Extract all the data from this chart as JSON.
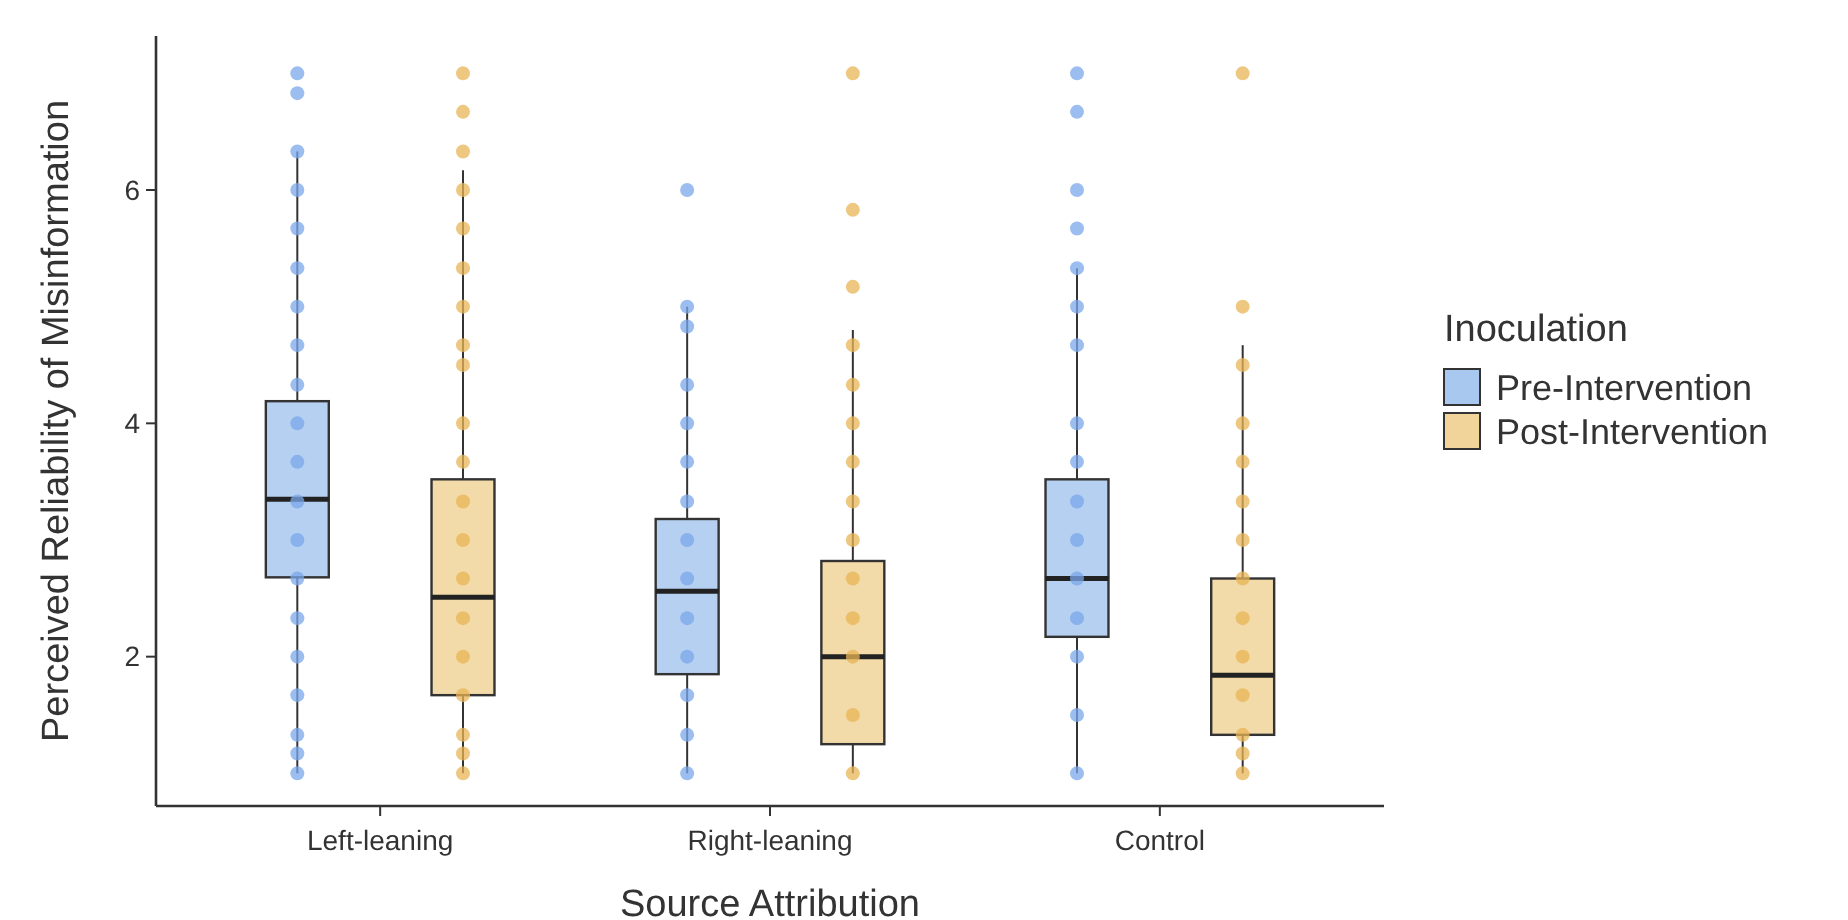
{
  "chart_data": {
    "type": "box",
    "xlabel": "Source Attribution",
    "ylabel": "Perceived Reliability of Misinformation",
    "legend_title": "Inoculation",
    "legend": "right",
    "grid": false,
    "categories": [
      "Left-leaning",
      "Right-leaning",
      "Control"
    ],
    "ylim": [
      0.72,
      7.32
    ],
    "yticks": [
      2,
      4,
      6
    ],
    "series": [
      {
        "name": "Pre-Intervention",
        "color": "#a9c8f0",
        "boxes": [
          {
            "low": 1,
            "q1": 2.68,
            "median": 3.35,
            "q3": 4.19,
            "high": 6.33
          },
          {
            "low": 1,
            "q1": 1.85,
            "median": 2.56,
            "q3": 3.18,
            "high": 5
          },
          {
            "low": 1,
            "q1": 2.17,
            "median": 2.67,
            "q3": 3.52,
            "high": 5.33
          }
        ]
      },
      {
        "name": "Post-Intervention",
        "color": "#f0d49a",
        "boxes": [
          {
            "low": 1,
            "q1": 1.67,
            "median": 2.51,
            "q3": 3.52,
            "high": 6.17
          },
          {
            "low": 1,
            "q1": 1.25,
            "median": 2,
            "q3": 2.82,
            "high": 4.8
          },
          {
            "low": 1,
            "q1": 1.33,
            "median": 1.84,
            "q3": 2.67,
            "high": 4.67
          }
        ]
      },
      {
        "type": "scatter",
        "color": "#7aa7ea",
        "x": [
          "Left-leaning",
          "Left-leaning",
          "Left-leaning",
          "Left-leaning",
          "Left-leaning",
          "Left-leaning",
          "Left-leaning",
          "Left-leaning",
          "Left-leaning",
          "Left-leaning",
          "Left-leaning",
          "Left-leaning",
          "Left-leaning",
          "Left-leaning",
          "Left-leaning",
          "Left-leaning",
          "Left-leaning",
          "Left-leaning",
          "Left-leaning",
          "Left-leaning",
          "Right-leaning",
          "Right-leaning",
          "Right-leaning",
          "Right-leaning",
          "Right-leaning",
          "Right-leaning",
          "Right-leaning",
          "Right-leaning",
          "Right-leaning",
          "Right-leaning",
          "Right-leaning",
          "Right-leaning",
          "Right-leaning",
          "Right-leaning",
          "Control",
          "Control",
          "Control",
          "Control",
          "Control",
          "Control",
          "Control",
          "Control",
          "Control",
          "Control",
          "Control",
          "Control",
          "Control",
          "Control",
          "Control",
          "Control"
        ],
        "values": [
          7,
          6.83,
          6.33,
          6,
          5.67,
          5.33,
          5,
          4.67,
          4.33,
          4,
          3.67,
          3.33,
          3,
          2.67,
          2.33,
          2,
          1.67,
          1.33,
          1.17,
          1,
          6,
          5,
          4.83,
          4.33,
          4,
          3.67,
          3.33,
          3,
          2.67,
          2.33,
          2,
          1.67,
          1.33,
          1,
          7,
          6.67,
          6,
          5.67,
          5.33,
          5,
          4.67,
          4,
          3.67,
          3.33,
          3,
          2.67,
          2.33,
          2,
          1.5,
          1
        ]
      },
      {
        "type": "scatter",
        "color": "#e8b655",
        "x": [
          "Left-leaning",
          "Left-leaning",
          "Left-leaning",
          "Left-leaning",
          "Left-leaning",
          "Left-leaning",
          "Left-leaning",
          "Left-leaning",
          "Left-leaning",
          "Left-leaning",
          "Left-leaning",
          "Left-leaning",
          "Left-leaning",
          "Left-leaning",
          "Left-leaning",
          "Left-leaning",
          "Left-leaning",
          "Left-leaning",
          "Left-leaning",
          "Left-leaning",
          "Right-leaning",
          "Right-leaning",
          "Right-leaning",
          "Right-leaning",
          "Right-leaning",
          "Right-leaning",
          "Right-leaning",
          "Right-leaning",
          "Right-leaning",
          "Right-leaning",
          "Right-leaning",
          "Right-leaning",
          "Right-leaning",
          "Right-leaning",
          "Control",
          "Control",
          "Control",
          "Control",
          "Control",
          "Control",
          "Control",
          "Control",
          "Control",
          "Control",
          "Control",
          "Control",
          "Control",
          "Control"
        ],
        "values": [
          7,
          6.67,
          6,
          5.67,
          5.33,
          5,
          4.67,
          4.5,
          4,
          3.67,
          3.33,
          3,
          2.67,
          2.33,
          2,
          1.67,
          1.33,
          1.17,
          1,
          6.33,
          7,
          5.83,
          5.17,
          4.67,
          4.33,
          4,
          3.67,
          3.33,
          3,
          2.67,
          2.33,
          2,
          1.5,
          1,
          7,
          5,
          4.5,
          4,
          3.67,
          3.33,
          3,
          2.67,
          2.33,
          2,
          1.67,
          1.33,
          1.17,
          1
        ]
      }
    ]
  }
}
